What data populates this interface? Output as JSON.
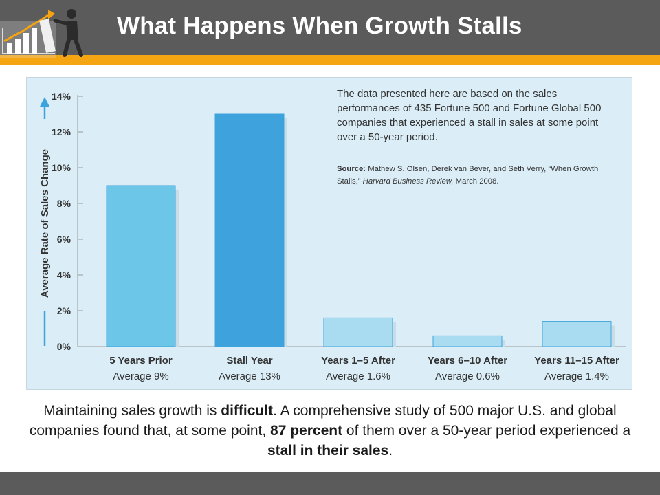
{
  "header": {
    "title": "What Happens When Growth Stalls",
    "logo_icon": "growth-chart-figure-icon",
    "colors": {
      "bar": "#5b5b5b",
      "accent": "#f5a412"
    }
  },
  "note": {
    "text": "The data presented here are based on the sales performances of 435 Fortune 500 and Fortune Global 500 companies that experienced a stall in sales at some point over a 50-year period.",
    "source_label": "Source:",
    "source_authors": "Mathew S. Olsen, Derek van Bever, and Seth Verry,",
    "source_article": "“When Growth Stalls,”",
    "source_publication": "Harvard Business Review,",
    "source_date": "March 2008."
  },
  "chart_data": {
    "type": "bar",
    "categories": [
      "5 Years Prior",
      "Stall Year",
      "Years 1–5 After",
      "Years 6–10 After",
      "Years 11–15 After"
    ],
    "sublabels": [
      "Average 9%",
      "Average 13%",
      "Average 1.6%",
      "Average 0.6%",
      "Average 1.4%"
    ],
    "values": [
      9,
      13,
      1.6,
      0.6,
      1.4
    ],
    "ylabel": "Average Rate of Sales Change",
    "ylim": [
      0,
      14
    ],
    "yticks": [
      "0%",
      "2%",
      "4%",
      "6%",
      "8%",
      "10%",
      "12%",
      "14%"
    ],
    "bar_colors": [
      "#6cc6e8",
      "#3ea3dc",
      "#a9dcf0",
      "#a9dcf0",
      "#a9dcf0"
    ],
    "grid": false
  },
  "caption": {
    "part1": "Maintaining sales growth is ",
    "bold1": "difficult",
    "part2": ". A comprehensive study of 500 major U.S. and global companies found that, at some point, ",
    "bold2": "87 percent",
    "part3": " of them over a 50-year period experienced a ",
    "bold3": "stall in their sales",
    "part4": "."
  }
}
